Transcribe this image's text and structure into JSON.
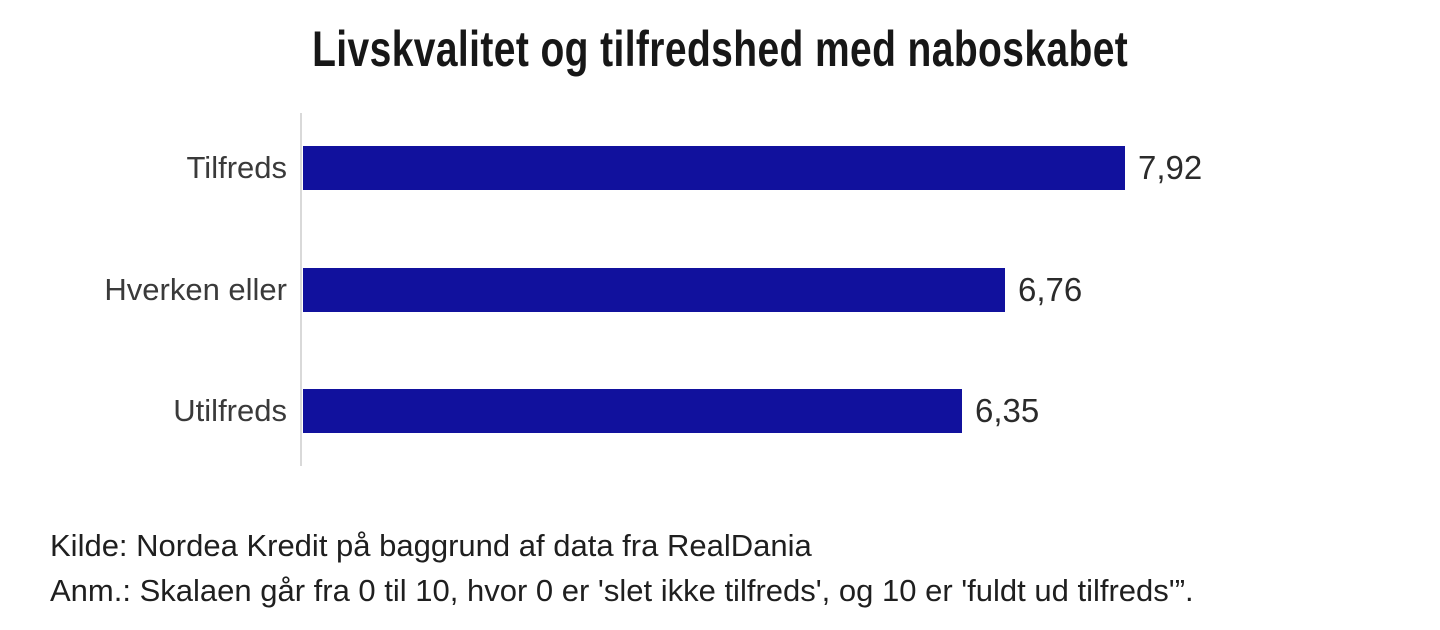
{
  "title": "Livskvalitet og tilfredshed med naboskabet",
  "colors": {
    "bar": "#11119d",
    "axis_line": "#d9d9d9",
    "title_text": "#171717",
    "label_text": "#3a3a3a"
  },
  "footer": {
    "source": "Kilde: Nordea Kredit på baggrund af data fra RealDania",
    "note": "Anm.: Skalaen går fra 0 til 10, hvor 0 er 'slet ikke tilfreds', og 10 er 'fuldt ud tilfreds'”."
  },
  "chart_data": {
    "type": "bar",
    "orientation": "horizontal",
    "title": "Livskvalitet og tilfredshed med naboskabet",
    "categories": [
      "Tilfreds",
      "Hverken eller",
      "Utilfreds"
    ],
    "values": [
      7.92,
      6.76,
      6.35
    ],
    "value_labels": [
      "7,92",
      "6,76",
      "6,35"
    ],
    "xlabel": "",
    "ylabel": "",
    "xlim": [
      0,
      10
    ],
    "grid": false,
    "legend": false,
    "axis_note": "scale 0–10, only vertical baseline axis shown, value labels at bar ends"
  }
}
